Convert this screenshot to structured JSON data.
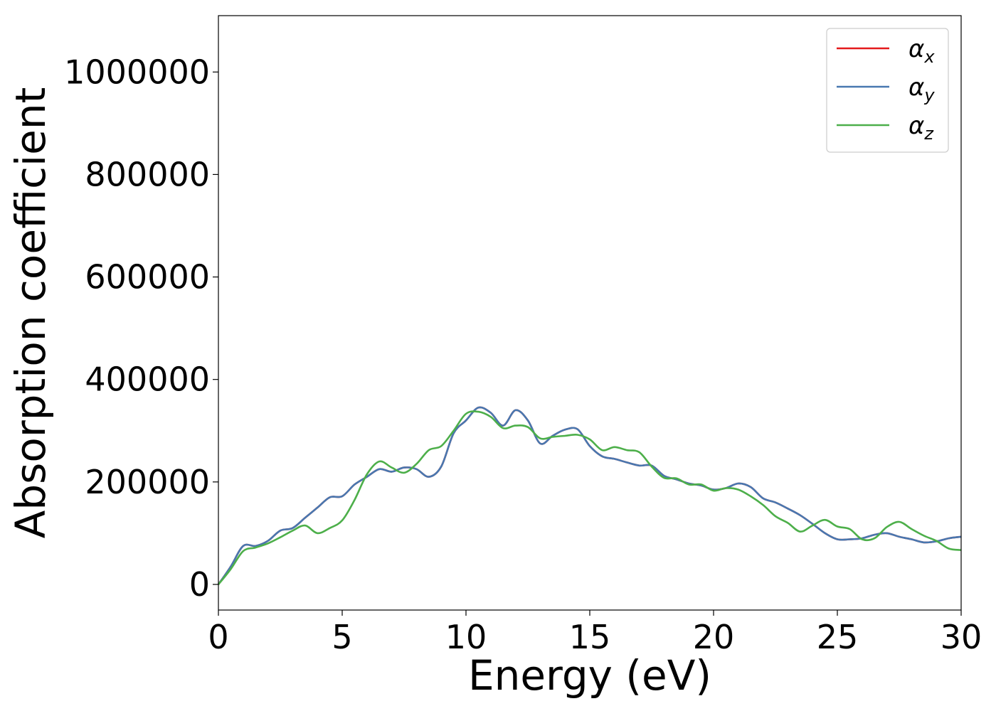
{
  "chart_data": {
    "type": "line",
    "title": "",
    "xlabel": "Energy (eV)",
    "ylabel": "Absorption coefficient",
    "xlim": [
      0,
      30
    ],
    "ylim": [
      -50000,
      1110000
    ],
    "xticks": [
      0,
      5,
      10,
      15,
      20,
      25,
      30
    ],
    "yticks": [
      0,
      200000,
      400000,
      600000,
      800000,
      1000000
    ],
    "xtick_labels": [
      "0",
      "5",
      "10",
      "15",
      "20",
      "25",
      "30"
    ],
    "ytick_labels": [
      "0",
      "200000",
      "400000",
      "600000",
      "800000",
      "1000000"
    ],
    "grid": false,
    "legend_position": "top-right",
    "series": [
      {
        "name": "α_x",
        "legend_base": "α",
        "legend_sub": "x",
        "color": "#e41a1c",
        "x": [
          0,
          0.5,
          1,
          1.5,
          2,
          2.5,
          3,
          3.5,
          4,
          4.5,
          5,
          5.5,
          6,
          6.5,
          7,
          7.5,
          8,
          8.5,
          9,
          9.5,
          10,
          10.5,
          11,
          11.5,
          12,
          12.5,
          13,
          13.5,
          14,
          14.5,
          15,
          15.5,
          16,
          16.5,
          17,
          17.5,
          18,
          18.5,
          19,
          19.5,
          20,
          20.5,
          21,
          21.5,
          22,
          22.5,
          23,
          23.5,
          24,
          24.5,
          25,
          25.5,
          26,
          26.5,
          27,
          27.5,
          28,
          28.5,
          29,
          29.5,
          30
        ],
        "y": [
          0,
          35000,
          75000,
          75000,
          85000,
          105000,
          110000,
          130000,
          150000,
          170000,
          172000,
          195000,
          210000,
          225000,
          220000,
          228000,
          225000,
          210000,
          230000,
          295000,
          320000,
          345000,
          335000,
          310000,
          340000,
          320000,
          275000,
          290000,
          302000,
          303000,
          270000,
          250000,
          245000,
          238000,
          232000,
          232000,
          212000,
          205000,
          197000,
          193000,
          185000,
          188000,
          197000,
          190000,
          168000,
          160000,
          148000,
          135000,
          118000,
          100000,
          88000,
          88000,
          90000,
          97000,
          100000,
          93000,
          88000,
          82000,
          84000,
          90000,
          93000
        ]
      },
      {
        "name": "α_y",
        "legend_base": "α",
        "legend_sub": "y",
        "color": "#4878b0",
        "x": [
          0,
          0.5,
          1,
          1.5,
          2,
          2.5,
          3,
          3.5,
          4,
          4.5,
          5,
          5.5,
          6,
          6.5,
          7,
          7.5,
          8,
          8.5,
          9,
          9.5,
          10,
          10.5,
          11,
          11.5,
          12,
          12.5,
          13,
          13.5,
          14,
          14.5,
          15,
          15.5,
          16,
          16.5,
          17,
          17.5,
          18,
          18.5,
          19,
          19.5,
          20,
          20.5,
          21,
          21.5,
          22,
          22.5,
          23,
          23.5,
          24,
          24.5,
          25,
          25.5,
          26,
          26.5,
          27,
          27.5,
          28,
          28.5,
          29,
          29.5,
          30
        ],
        "y": [
          0,
          35000,
          75000,
          75000,
          85000,
          105000,
          110000,
          130000,
          150000,
          170000,
          172000,
          195000,
          210000,
          225000,
          220000,
          228000,
          225000,
          210000,
          230000,
          295000,
          320000,
          345000,
          335000,
          310000,
          340000,
          320000,
          275000,
          290000,
          302000,
          303000,
          270000,
          250000,
          245000,
          238000,
          232000,
          232000,
          212000,
          205000,
          197000,
          193000,
          185000,
          188000,
          197000,
          190000,
          168000,
          160000,
          148000,
          135000,
          118000,
          100000,
          88000,
          88000,
          90000,
          97000,
          100000,
          93000,
          88000,
          82000,
          84000,
          90000,
          93000
        ]
      },
      {
        "name": "α_z",
        "legend_base": "α",
        "legend_sub": "z",
        "color": "#4daf4a",
        "x": [
          0,
          0.5,
          1,
          1.5,
          2,
          2.5,
          3,
          3.5,
          4,
          4.5,
          5,
          5.5,
          6,
          6.5,
          7,
          7.5,
          8,
          8.5,
          9,
          9.5,
          10,
          10.5,
          11,
          11.5,
          12,
          12.5,
          13,
          13.5,
          14,
          14.5,
          15,
          15.5,
          16,
          16.5,
          17,
          17.5,
          18,
          18.5,
          19,
          19.5,
          20,
          20.5,
          21,
          21.5,
          22,
          22.5,
          23,
          23.5,
          24,
          24.5,
          25,
          25.5,
          26,
          26.5,
          27,
          27.5,
          28,
          28.5,
          29,
          29.5,
          30
        ],
        "y": [
          0,
          30000,
          65000,
          72000,
          80000,
          92000,
          105000,
          115000,
          100000,
          110000,
          125000,
          165000,
          215000,
          240000,
          228000,
          218000,
          235000,
          262000,
          270000,
          300000,
          333000,
          337000,
          327000,
          305000,
          310000,
          307000,
          285000,
          288000,
          290000,
          292000,
          283000,
          262000,
          268000,
          262000,
          258000,
          230000,
          208000,
          207000,
          195000,
          195000,
          183000,
          188000,
          185000,
          172000,
          155000,
          133000,
          120000,
          103000,
          115000,
          126000,
          113000,
          108000,
          88000,
          90000,
          112000,
          122000,
          108000,
          95000,
          85000,
          70000,
          67000
        ]
      }
    ]
  }
}
